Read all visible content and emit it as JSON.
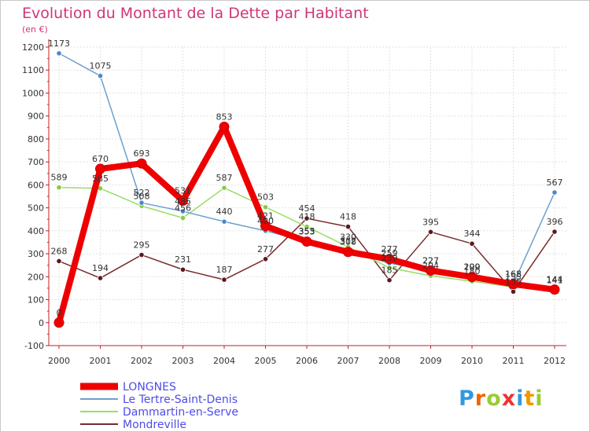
{
  "chart_data": {
    "type": "line",
    "title": "Evolution du Montant de la Dette par Habitant",
    "unit_label": "(en €)",
    "xlabel": "",
    "ylabel": "",
    "ylim": [
      -100,
      1200
    ],
    "y_ticks": [
      -100,
      0,
      100,
      200,
      300,
      400,
      500,
      600,
      700,
      800,
      900,
      1000,
      1100,
      1200
    ],
    "grid": true,
    "legend_position": "bottom-left",
    "categories": [
      "2000",
      "2001",
      "2002",
      "2003",
      "2004",
      "2005",
      "2006",
      "2007",
      "2008",
      "2009",
      "2010",
      "2011",
      "2012"
    ],
    "series": [
      {
        "name": "Mondreville",
        "color": "#7a2a2a",
        "marker": "#5a1a1a",
        "values": [
          268,
          194,
          295,
          231,
          187,
          277,
          454,
          418,
          185,
          395,
          344,
          135,
          396
        ]
      },
      {
        "name": "Dammartin-en-Serve",
        "color": "#99dd66",
        "marker": "#88cc44",
        "values": [
          589,
          585,
          508,
          456,
          587,
          503,
          418,
          330,
          239,
          204,
          180,
          155,
          141
        ]
      },
      {
        "name": "Le Tertre-Saint-Denis",
        "color": "#6aa0d0",
        "marker": "#4a88c8",
        "values": [
          1173,
          1075,
          522,
          485,
          440,
          400,
          355,
          312,
          259,
          227,
          200,
          168,
          567
        ]
      },
      {
        "name": "LONGNES",
        "color": "#ee0000",
        "marker": "#ee0000",
        "values": [
          0,
          670,
          693,
          531,
          853,
          421,
          353,
          308,
          277,
          227,
          199,
          168,
          144
        ]
      }
    ],
    "label_series": [
      {
        "name": "Mondreville",
        "values": [
          "268",
          "194",
          "295",
          "231",
          "187",
          "277",
          "454",
          "418",
          "185",
          "395",
          "344",
          "135",
          "396"
        ]
      },
      {
        "name": "Dammartin-en-Serve",
        "values": [
          "589",
          "585",
          "508",
          "456",
          "587",
          "503",
          "418",
          "330",
          "239",
          "204",
          "180",
          "155",
          "141"
        ]
      },
      {
        "name": "Le Tertre-Saint-Denis",
        "values": [
          "1173",
          "1075",
          "522",
          "485",
          "440",
          "400",
          "355",
          "312",
          "259",
          "227",
          "200",
          "168",
          "567"
        ]
      },
      {
        "name": "LONGNES",
        "values": [
          "0",
          "670",
          "693",
          "531",
          "853",
          "421",
          "353",
          "308",
          "277",
          "227",
          "199",
          "168",
          "144"
        ]
      }
    ]
  },
  "legend": {
    "items": [
      {
        "label": "LONGNES",
        "color": "#ee0000"
      },
      {
        "label": "Le Tertre-Saint-Denis",
        "color": "#6aa0d0"
      },
      {
        "label": "Dammartin-en-Serve",
        "color": "#99dd66"
      },
      {
        "label": "Mondreville",
        "color": "#7a2a2a"
      }
    ]
  },
  "branding": {
    "logo_letters": [
      "P",
      "r",
      "o",
      "x",
      "i",
      "t",
      "i"
    ],
    "logo_colors": [
      "#3399dd",
      "#ee6600",
      "#99cc33",
      "#ee3333",
      "#3399dd",
      "#ee9900",
      "#99cc33"
    ]
  }
}
